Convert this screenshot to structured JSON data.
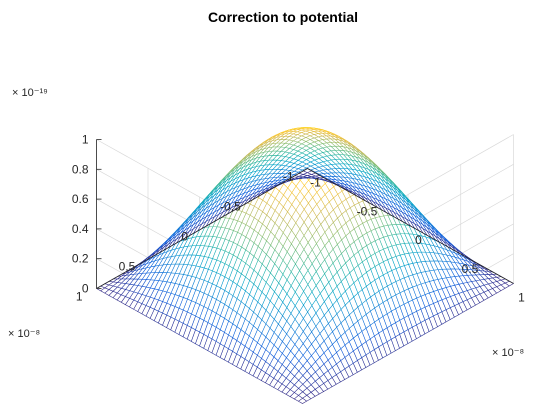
{
  "chart_data": {
    "type": "surface",
    "title": "Correction to potential",
    "xlabel": "",
    "ylabel": "",
    "zlabel": "",
    "x_exponent_label": "× 10⁻⁸",
    "y_exponent_label": "× 10⁻⁸",
    "z_exponent_label": "× 10⁻¹⁹",
    "xlim": [
      -1e-08,
      1e-08
    ],
    "ylim": [
      -1e-08,
      1e-08
    ],
    "zlim": [
      0,
      1e-19
    ],
    "x_ticks": [
      -1,
      -0.5,
      0,
      0.5,
      1
    ],
    "y_ticks": [
      -1,
      -0.5,
      0,
      0.5,
      1
    ],
    "z_ticks": [
      0,
      0.2,
      0.4,
      0.6,
      0.8,
      1
    ],
    "x_tick_labels": [
      "-1",
      "-0.5",
      "0",
      "0.5",
      "1"
    ],
    "y_tick_labels": [
      "-1",
      "-0.5",
      "0",
      "0.5",
      "1"
    ],
    "z_tick_labels": [
      "0",
      "0.2",
      "0.4",
      "0.6",
      "0.8",
      "1"
    ],
    "grid": true,
    "colormap": "parula",
    "colormap_stops": [
      "#352a87",
      "#0f5cdd",
      "#1481d6",
      "#06a4ca",
      "#2eb7a4",
      "#87bf77",
      "#d1bb59",
      "#fec832",
      "#f9fb0e"
    ],
    "mesh_style": "mesh (wireframe, white faces)",
    "grid_resolution": 51,
    "surface": "z = 1e-19 * cos(pi*x/2e-8) * cos(pi*y/2e-8)",
    "peak": {
      "x": 0,
      "y": 0,
      "z": 1e-19
    },
    "edge_value_at_corners": 0,
    "edge_value_mid_sides": 0
  }
}
